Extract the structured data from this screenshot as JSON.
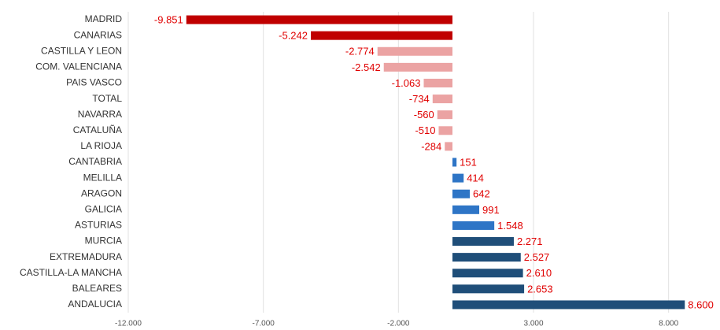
{
  "chart_data": {
    "type": "bar",
    "orientation": "horizontal",
    "categories": [
      "MADRID",
      "CANARIAS",
      "CASTILLA Y LEON",
      "COM. VALENCIANA",
      "PAIS VASCO",
      "TOTAL",
      "NAVARRA",
      "CATALUÑA",
      "LA RIOJA",
      "CANTABRIA",
      "MELILLA",
      "ARAGON",
      "GALICIA",
      "ASTURIAS",
      "MURCIA",
      "EXTREMADURA",
      "CASTILLA-LA MANCHA",
      "BALEARES",
      "ANDALUCIA"
    ],
    "values": [
      -9851,
      -5242,
      -2774,
      -2542,
      -1063,
      -734,
      -560,
      -510,
      -284,
      151,
      414,
      642,
      991,
      1548,
      2271,
      2527,
      2610,
      2653,
      8600
    ],
    "value_labels": [
      "-9.851",
      "-5.242",
      "-2.774",
      "-2.542",
      "-1.063",
      "-734",
      "-560",
      "-510",
      "-284",
      "151",
      "414",
      "642",
      "991",
      "1.548",
      "2.271",
      "2.527",
      "2.610",
      "2.653",
      "8.600"
    ],
    "colors": [
      "#c00000",
      "#c00000",
      "#eba3a3",
      "#eba3a3",
      "#eba3a3",
      "#eba3a3",
      "#eba3a3",
      "#eba3a3",
      "#eba3a3",
      "#2e75c6",
      "#2e75c6",
      "#2e75c6",
      "#2e75c6",
      "#2e75c6",
      "#1f4e79",
      "#1f4e79",
      "#1f4e79",
      "#1f4e79",
      "#1f4e79"
    ],
    "xlim": [
      -12000,
      9000
    ],
    "xticks": [
      {
        "value": -12000,
        "label": "-12.000"
      },
      {
        "value": -7000,
        "label": "-7.000"
      },
      {
        "value": -2000,
        "label": "-2.000"
      },
      {
        "value": 3000,
        "label": "3.000"
      },
      {
        "value": 8000,
        "label": "8.000"
      }
    ],
    "grid": true
  }
}
